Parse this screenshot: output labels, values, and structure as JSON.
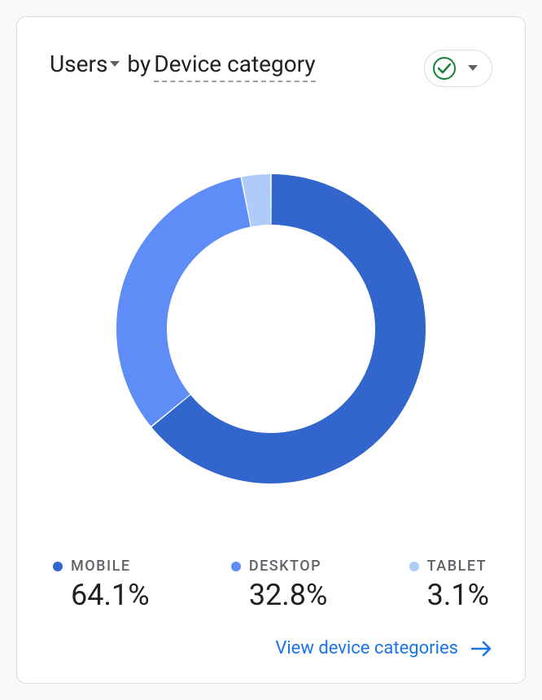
{
  "header": {
    "metric_label": "Users",
    "by_text": "by",
    "dimension_label": "Device category",
    "status_check_color": "#188038",
    "caret_color": "#5f6368"
  },
  "chart": {
    "type": "donut",
    "outer_radius": 190,
    "inner_radius": 128,
    "background_color": "#ffffff",
    "slice_gap_deg": 0.5,
    "series": [
      {
        "name": "MOBILE",
        "value": 64.1,
        "color": "#3366cc"
      },
      {
        "name": "DESKTOP",
        "value": 32.8,
        "color": "#5e8df7"
      },
      {
        "name": "TABLET",
        "value": 3.1,
        "color": "#aecbfa"
      }
    ]
  },
  "legend": {
    "items": [
      {
        "label": "MOBILE",
        "value": "64.1%",
        "color": "#3366cc"
      },
      {
        "label": "DESKTOP",
        "value": "32.8%",
        "color": "#5e8df7"
      },
      {
        "label": "TABLET",
        "value": "3.1%",
        "color": "#aecbfa"
      }
    ],
    "label_color": "#5f6368",
    "value_color": "#202124"
  },
  "footer": {
    "link_text": "View device categories",
    "link_color": "#1a73e8"
  }
}
